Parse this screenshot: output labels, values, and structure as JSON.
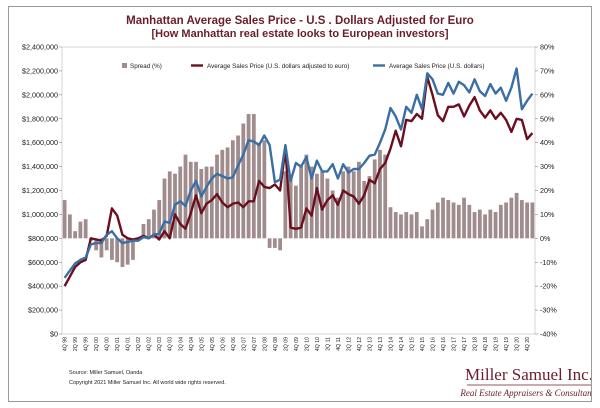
{
  "chart_data": {
    "type": "bar+line",
    "title": "Manhattan Average Sales Price - U.S . Dollars Adjusted for Euro",
    "subtitle": "[How Manhattan real estate looks to European investors]",
    "categories": [
      "4Q 98",
      "1Q 99",
      "2Q 99",
      "3Q 99",
      "4Q 99",
      "1Q 00",
      "2Q 00",
      "3Q 00",
      "4Q 00",
      "1Q 01",
      "2Q 01",
      "3Q 01",
      "4Q 01",
      "1Q 02",
      "2Q 02",
      "3Q 02",
      "4Q 02",
      "1Q 03",
      "2Q 03",
      "3Q 03",
      "4Q 03",
      "1Q 04",
      "2Q 04",
      "3Q 04",
      "4Q 04",
      "1Q 05",
      "2Q 05",
      "3Q 05",
      "4Q 05",
      "1Q 06",
      "2Q 06",
      "3Q 06",
      "4Q 06",
      "1Q 07",
      "2Q 07",
      "3Q 07",
      "4Q 07",
      "1Q 08",
      "2Q 08",
      "3Q 08",
      "4Q 08",
      "1Q 09",
      "2Q 09",
      "3Q 09",
      "4Q 09",
      "1Q 10",
      "2Q 10",
      "3Q 10",
      "4Q 10",
      "1Q 11",
      "2Q 11",
      "3Q 11",
      "4Q 11",
      "1Q 12",
      "2Q 12",
      "3Q 12",
      "4Q 12",
      "1Q 13",
      "2Q 13",
      "3Q 13",
      "4Q 13",
      "1Q 14",
      "2Q 14",
      "3Q 14",
      "4Q 14",
      "1Q 15",
      "2Q 15",
      "3Q 15",
      "4Q 15",
      "1Q 16",
      "2Q 16",
      "3Q 16",
      "4Q 16",
      "1Q 17",
      "2Q 17",
      "3Q 17",
      "4Q 17",
      "1Q 18",
      "2Q 18",
      "3Q 18",
      "4Q 18",
      "1Q 19",
      "2Q 19",
      "3Q 19",
      "4Q 19",
      "1Q 20",
      "2Q 20",
      "3Q 20",
      "4Q 20",
      "1Q 21"
    ],
    "tick_labels": [
      "4Q 98",
      "2Q 99",
      "4Q 99",
      "2Q 00",
      "4Q 00",
      "2Q 01",
      "4Q 01",
      "2Q 02",
      "4Q 02",
      "2Q 03",
      "4Q 03",
      "2Q 04",
      "4Q 04",
      "2Q 05",
      "4Q 05",
      "2Q 06",
      "4Q 06",
      "2Q 07",
      "4Q 07",
      "2Q 08",
      "4Q 08",
      "2Q 09",
      "4Q 09",
      "2Q 10",
      "4Q 10",
      "2Q 11",
      "4Q 11",
      "2Q 12",
      "4Q 12",
      "2Q 13",
      "4Q 13",
      "2Q 14",
      "4Q 14",
      "2Q 15",
      "4Q 15",
      "2Q 16",
      "4Q 16",
      "2Q 17",
      "4Q 17",
      "2Q 18",
      "4Q 18",
      "2Q 19",
      "4Q 19",
      "2Q 20",
      "4Q 20",
      "2Q 21"
    ],
    "series": [
      {
        "name": "Spread (%)",
        "type": "bar",
        "axis": "right",
        "color": "#a08c8c",
        "values": [
          16,
          10,
          3,
          7,
          8,
          -1,
          -5,
          -8,
          -5,
          -9,
          -10,
          -12,
          -11,
          -9,
          -1,
          6,
          8,
          12,
          16,
          25,
          28,
          27,
          30,
          35,
          32,
          32,
          29,
          30,
          30,
          35,
          37,
          38,
          41,
          43,
          48,
          52,
          52,
          40,
          41,
          -4,
          -4,
          -5,
          28,
          26,
          22,
          30,
          35,
          30,
          27,
          28,
          25,
          20,
          17,
          28,
          30,
          28,
          32,
          24,
          26,
          33,
          37,
          35,
          13,
          11,
          10,
          11,
          10,
          11,
          5,
          8,
          12,
          15,
          17,
          16,
          15,
          14,
          17,
          14,
          11,
          12,
          10,
          12,
          11,
          14,
          15,
          17,
          19,
          16,
          15,
          15
        ]
      },
      {
        "name": "Average Sales Price (U.S. dollars adjusted to euro)",
        "type": "line",
        "axis": "left",
        "color": "#6b0f1f",
        "values": [
          400000,
          480000,
          560000,
          600000,
          620000,
          800000,
          790000,
          780000,
          820000,
          1050000,
          990000,
          830000,
          800000,
          790000,
          800000,
          820000,
          800000,
          830000,
          790000,
          860000,
          800000,
          1000000,
          920000,
          880000,
          1010000,
          1160000,
          1010000,
          1090000,
          1120000,
          1170000,
          1100000,
          1060000,
          1090000,
          1100000,
          1060000,
          1110000,
          1110000,
          1280000,
          1230000,
          1220000,
          1250000,
          1200000,
          1550000,
          890000,
          880000,
          890000,
          1050000,
          990000,
          1220000,
          1040000,
          1120000,
          1160000,
          1080000,
          1200000,
          1170000,
          1150000,
          1090000,
          1160000,
          1290000,
          1260000,
          1380000,
          1430000,
          1550000,
          1700000,
          1570000,
          1790000,
          1780000,
          1840000,
          1800000,
          2150000,
          2000000,
          1830000,
          1780000,
          1900000,
          1900000,
          1920000,
          1820000,
          1910000,
          1980000,
          1870000,
          1810000,
          1870000,
          1800000,
          1850000,
          1790000,
          1690000,
          1800000,
          1790000,
          1630000,
          1680000
        ]
      },
      {
        "name": "Average Sales Price (U.S. dollars)",
        "type": "line",
        "axis": "left",
        "color": "#3a6ea5",
        "values": [
          470000,
          530000,
          590000,
          620000,
          640000,
          750000,
          760000,
          760000,
          830000,
          860000,
          800000,
          760000,
          770000,
          780000,
          780000,
          810000,
          800000,
          830000,
          840000,
          940000,
          930000,
          1080000,
          1110000,
          1070000,
          1200000,
          1280000,
          1150000,
          1230000,
          1300000,
          1340000,
          1320000,
          1300000,
          1310000,
          1410000,
          1500000,
          1620000,
          1610000,
          1580000,
          1660000,
          1580000,
          1270000,
          1290000,
          1580000,
          1280000,
          1430000,
          1400000,
          1480000,
          1300000,
          1450000,
          1360000,
          1360000,
          1420000,
          1300000,
          1420000,
          1350000,
          1380000,
          1380000,
          1430000,
          1490000,
          1500000,
          1600000,
          1710000,
          1890000,
          1820000,
          1710000,
          1900000,
          1850000,
          2000000,
          1880000,
          2180000,
          2130000,
          2010000,
          2000000,
          2100000,
          2010000,
          2110000,
          2080000,
          2020000,
          2130000,
          2030000,
          1990000,
          2090000,
          2010000,
          2060000,
          1950000,
          2060000,
          2220000,
          1880000,
          1950000,
          2010000
        ]
      }
    ],
    "y_left": {
      "min": 0,
      "max": 2400000,
      "ticks": [
        "$0",
        "$200,000",
        "$400,000",
        "$600,000",
        "$800,000",
        "$1,000,000",
        "$1,200,000",
        "$1,400,000",
        "$1,600,000",
        "$1,800,000",
        "$2,000,000",
        "$2,200,000",
        "$2,400,000"
      ]
    },
    "y_right": {
      "min": -40,
      "max": 80,
      "ticks": [
        "-40%",
        "-30%",
        "-20%",
        "-10%",
        "0%",
        "10%",
        "20%",
        "30%",
        "40%",
        "50%",
        "60%",
        "70%",
        "80%"
      ]
    },
    "legend_position": "top",
    "grid": false
  },
  "footer": {
    "source": "Source: Miller Samuel, Oanda",
    "copyright": "Copyright 2021 Miller Samuel Inc.  All world wide rights reserved."
  },
  "brand": {
    "name": "Miller Samuel Inc.",
    "tagline": "Real Estate Appraisers & Consultants"
  }
}
